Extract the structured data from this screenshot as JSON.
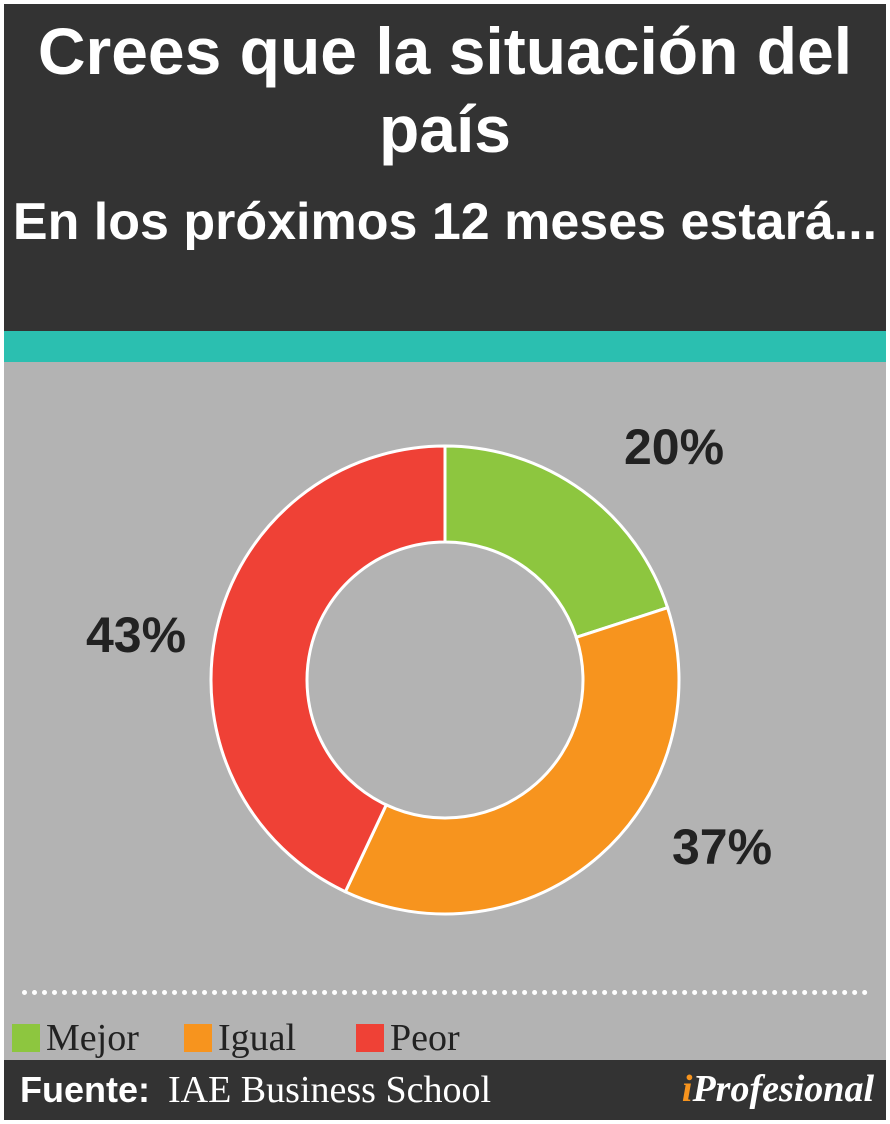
{
  "header": {
    "title": "Crees que la situación del país",
    "subtitle": "En los próximos 12 meses estará..."
  },
  "colors": {
    "header_bg": "#333333",
    "accent": "#2bbfb0",
    "panel_bg": "#b3b3b3",
    "mejor": "#8dc63f",
    "igual": "#f7941e",
    "peor": "#ef4136"
  },
  "chart_data": {
    "type": "pie",
    "donut": true,
    "categories": [
      "Mejor",
      "Igual",
      "Peor"
    ],
    "values": [
      20,
      37,
      43
    ],
    "data_labels": [
      "20%",
      "37%",
      "43%"
    ],
    "colors": [
      "#8dc63f",
      "#f7941e",
      "#ef4136"
    ],
    "legend_position": "bottom"
  },
  "legend": {
    "items": [
      {
        "label": "Mejor",
        "color": "#8dc63f"
      },
      {
        "label": "Igual",
        "color": "#f7941e"
      },
      {
        "label": "Peor",
        "color": "#ef4136"
      }
    ]
  },
  "footer": {
    "source_label": "Fuente:",
    "source_value": "IAE Business School",
    "brand_initial": "i",
    "brand_rest": "Profesional"
  }
}
